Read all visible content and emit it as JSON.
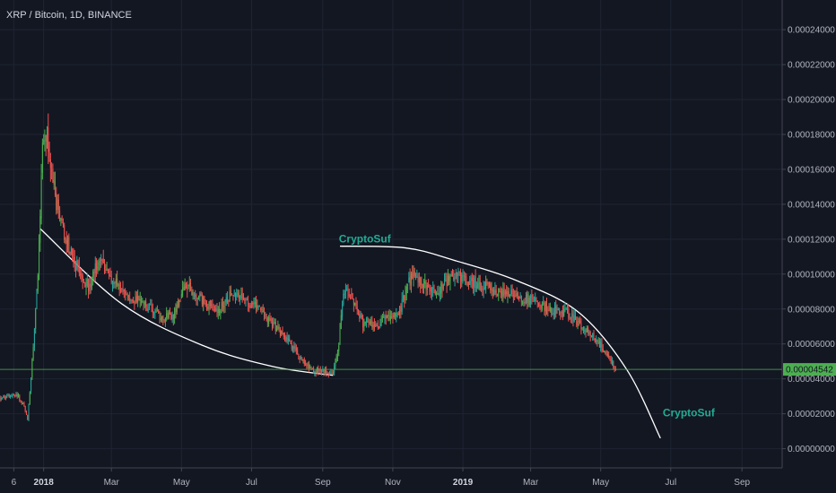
{
  "chart_data": {
    "type": "candlestick",
    "title": "XRP / Bitcoin, 1D, BINANCE",
    "y_ticks": [
      0,
      2e-05,
      4e-05,
      6e-05,
      8e-05,
      0.0001,
      0.00012,
      0.00014,
      0.00016,
      0.00018,
      0.0002,
      0.00022,
      0.00024
    ],
    "y_tick_labels": [
      "0.00000000",
      "0.00002000",
      "0.00004000",
      "0.00006000",
      "0.00008000",
      "0.00010000",
      "0.00012000",
      "0.00014000",
      "0.00016000",
      "0.00018000",
      "0.00020000",
      "0.00022000",
      "0.00024000"
    ],
    "ylim": [
      -1.1e-05,
      0.000257
    ],
    "x_range": [
      "2017-11-24",
      "2019-10-06"
    ],
    "x_ticks": [
      {
        "date": "2017-12-06",
        "label": "6"
      },
      {
        "date": "2018-01-01",
        "label": "2018",
        "bold": true
      },
      {
        "date": "2018-03-01",
        "label": "Mar"
      },
      {
        "date": "2018-05-01",
        "label": "May"
      },
      {
        "date": "2018-07-01",
        "label": "Jul"
      },
      {
        "date": "2018-09-01",
        "label": "Sep"
      },
      {
        "date": "2018-11-01",
        "label": "Nov"
      },
      {
        "date": "2019-01-01",
        "label": "2019",
        "bold": true
      },
      {
        "date": "2019-03-01",
        "label": "Mar"
      },
      {
        "date": "2019-05-01",
        "label": "May"
      },
      {
        "date": "2019-07-01",
        "label": "Jul"
      },
      {
        "date": "2019-09-01",
        "label": "Sep"
      }
    ],
    "current_price": 4.542e-05,
    "current_price_label": "0.00004542",
    "price_path": [
      [
        "2017-11-24",
        2.9e-05
      ],
      [
        "2017-12-05",
        3.1e-05
      ],
      [
        "2017-12-10",
        3e-05
      ],
      [
        "2017-12-15",
        2.4e-05
      ],
      [
        "2017-12-18",
        1.6e-05
      ],
      [
        "2017-12-22",
        5e-05
      ],
      [
        "2017-12-27",
        0.0001
      ],
      [
        "2017-12-31",
        0.00017
      ],
      [
        "2018-01-04",
        0.00018
      ],
      [
        "2018-01-08",
        0.00016
      ],
      [
        "2018-01-12",
        0.00014
      ],
      [
        "2018-01-18",
        0.000125
      ],
      [
        "2018-01-25",
        0.000112
      ],
      [
        "2018-02-02",
        0.0001
      ],
      [
        "2018-02-10",
        9.2e-05
      ],
      [
        "2018-02-18",
        0.00011
      ],
      [
        "2018-02-26",
        0.0001
      ],
      [
        "2018-03-08",
        9.2e-05
      ],
      [
        "2018-03-20",
        8.6e-05
      ],
      [
        "2018-04-01",
        8.2e-05
      ],
      [
        "2018-04-14",
        7.5e-05
      ],
      [
        "2018-04-24",
        7.6e-05
      ],
      [
        "2018-05-04",
        9.5e-05
      ],
      [
        "2018-05-14",
        8.8e-05
      ],
      [
        "2018-05-24",
        8.2e-05
      ],
      [
        "2018-06-04",
        8e-05
      ],
      [
        "2018-06-14",
        9e-05
      ],
      [
        "2018-06-24",
        8.5e-05
      ],
      [
        "2018-07-04",
        8.2e-05
      ],
      [
        "2018-07-14",
        7.5e-05
      ],
      [
        "2018-07-24",
        6.8e-05
      ],
      [
        "2018-08-04",
        6e-05
      ],
      [
        "2018-08-14",
        5e-05
      ],
      [
        "2018-08-24",
        4.5e-05
      ],
      [
        "2018-09-04",
        4.4e-05
      ],
      [
        "2018-09-10",
        4.3e-05
      ],
      [
        "2018-09-15",
        6e-05
      ],
      [
        "2018-09-18",
        8.5e-05
      ],
      [
        "2018-09-22",
        9e-05
      ],
      [
        "2018-09-28",
        8.5e-05
      ],
      [
        "2018-10-06",
        7.2e-05
      ],
      [
        "2018-10-16",
        7e-05
      ],
      [
        "2018-10-28",
        7.5e-05
      ],
      [
        "2018-11-06",
        7.7e-05
      ],
      [
        "2018-11-12",
        9e-05
      ],
      [
        "2018-11-18",
        0.0001
      ],
      [
        "2018-11-28",
        9.3e-05
      ],
      [
        "2018-12-08",
        9e-05
      ],
      [
        "2018-12-18",
        9.5e-05
      ],
      [
        "2018-12-26",
        0.0001
      ],
      [
        "2019-01-06",
        9.7e-05
      ],
      [
        "2019-01-18",
        9.3e-05
      ],
      [
        "2019-02-01",
        9e-05
      ],
      [
        "2019-02-14",
        8.8e-05
      ],
      [
        "2019-03-01",
        8.5e-05
      ],
      [
        "2019-03-18",
        8e-05
      ],
      [
        "2019-04-02",
        7.8e-05
      ],
      [
        "2019-04-14",
        7e-05
      ],
      [
        "2019-04-26",
        6.3e-05
      ],
      [
        "2019-05-06",
        5.5e-05
      ],
      [
        "2019-05-14",
        4.54e-05
      ]
    ],
    "annotations": [
      {
        "text": "CryptoSuf",
        "date": "2018-09-15",
        "price": 0.000118
      },
      {
        "text": "CryptoSuf",
        "date": "2019-06-24",
        "price": 1.85e-05
      }
    ],
    "curves": [
      {
        "name": "bowl-curve",
        "points": [
          [
            "2017-12-29",
            0.000126
          ],
          [
            "2018-03-10",
            8.3e-05
          ],
          [
            "2018-05-20",
            5.9e-05
          ],
          [
            "2018-07-20",
            4.7e-05
          ],
          [
            "2018-09-10",
            4.2e-05
          ]
        ]
      },
      {
        "name": "dome-curve",
        "points": [
          [
            "2018-09-16",
            0.000116
          ],
          [
            "2018-11-12",
            0.000115
          ],
          [
            "2018-12-24",
            0.000108
          ],
          [
            "2019-02-18",
            9.6e-05
          ],
          [
            "2019-04-12",
            7.8e-05
          ],
          [
            "2019-05-24",
            4.5e-05
          ],
          [
            "2019-06-22",
            6e-06
          ]
        ]
      }
    ],
    "colors": {
      "background": "#131722",
      "up": "#26a69a",
      "down": "#ef5350",
      "up_bright": "#4caf50",
      "curve": "#ffffff",
      "price_line": "#4caf50",
      "text": "#b2b5be",
      "annotation": "#22ab94"
    }
  }
}
